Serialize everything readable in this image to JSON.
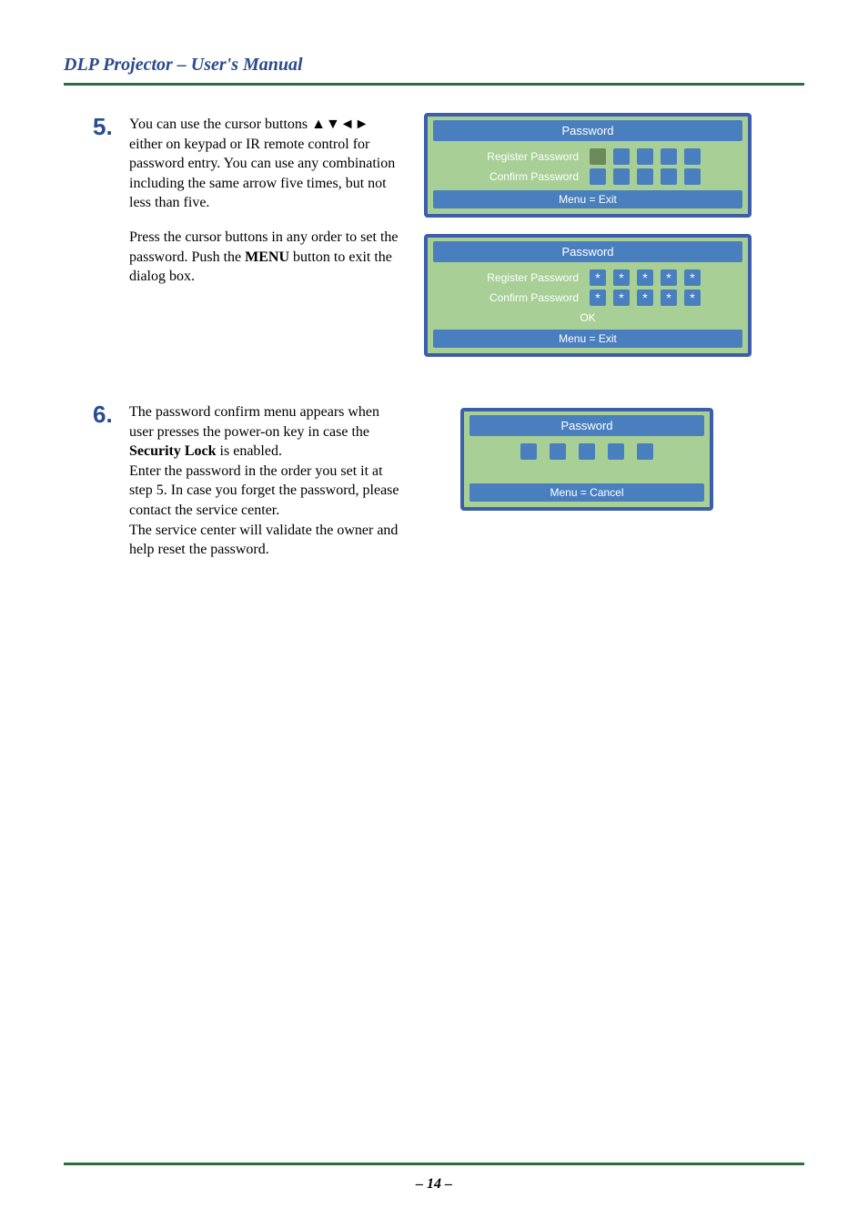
{
  "header": {
    "title": "DLP Projector – User's Manual"
  },
  "steps": [
    {
      "num": "5.",
      "paras": [
        "You can use the cursor buttons ▲▼◄► either on keypad or IR remote control for password entry. You can use any combination including the same arrow five times, but not less than five.",
        "Press the cursor buttons in any order to set the password. Push the <b>MENU</b> button to exit the dialog box."
      ]
    },
    {
      "num": "6.",
      "paras": [
        "The password confirm menu appears when user presses the power-on key in case the <b>Security Lock</b> is enabled.<br>Enter the password in the order you set it at step 5. In case you forget the password, please contact the service center.<br>The service center will validate the owner and help reset the password."
      ]
    }
  ],
  "dialogs": {
    "d1": {
      "title": "Password",
      "rows": [
        {
          "label": "Register Password",
          "filled": false
        },
        {
          "label": "Confirm Password",
          "filled": false
        }
      ],
      "footer": "Menu = Exit"
    },
    "d2": {
      "title": "Password",
      "rows": [
        {
          "label": "Register Password",
          "filled": true
        },
        {
          "label": "Confirm Password",
          "filled": true
        }
      ],
      "ok": "OK",
      "footer": "Menu = Exit"
    },
    "d3": {
      "title": "Password",
      "footer": "Menu = Cancel"
    },
    "star": "*",
    "box_count": 5,
    "colors": {
      "dialog_bg": "#a7cf96",
      "dialog_border": "#3d5ea8",
      "bar_bg": "#4a7fbf",
      "box_bg": "#4a7fbf",
      "box_first": "#6a8a5a",
      "header_line": "#2a6e3f",
      "title_color": "#2a4b8d"
    }
  },
  "page_number": "– 14 –"
}
